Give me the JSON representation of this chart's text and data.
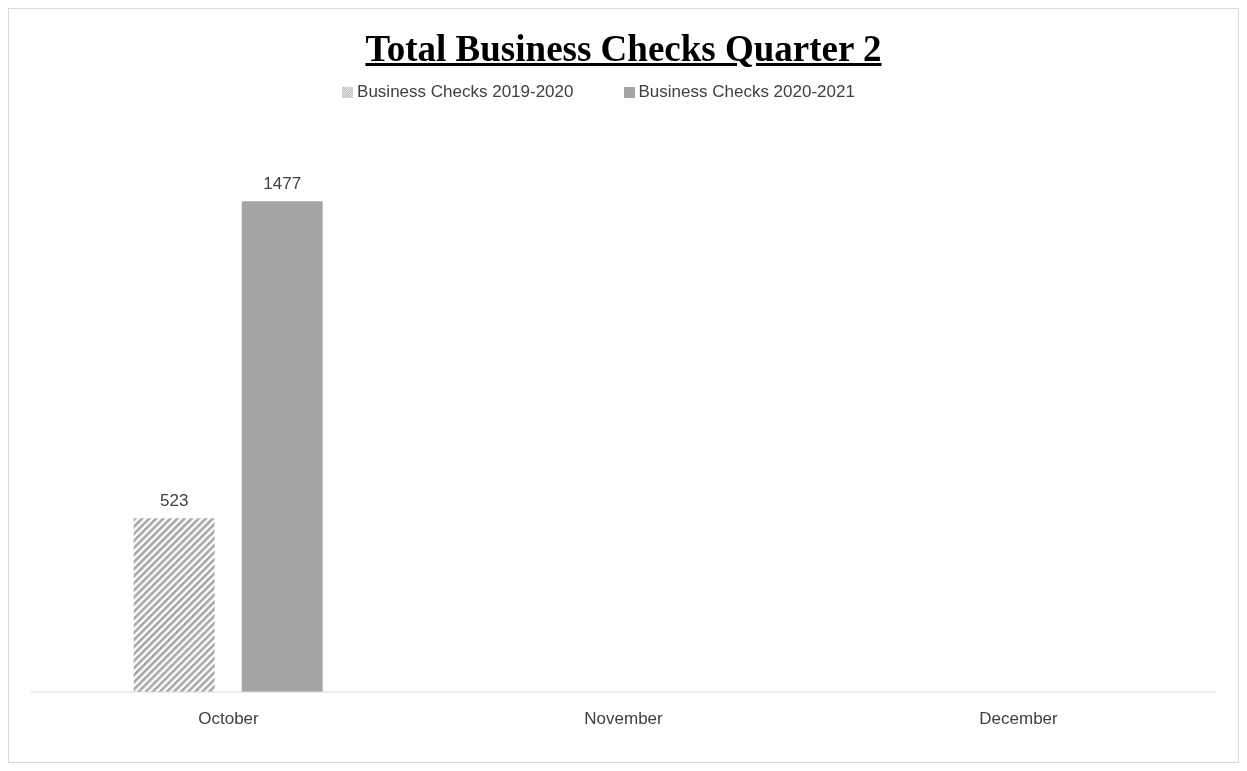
{
  "chart_data": {
    "type": "bar",
    "title": "Total Business Checks Quarter 2",
    "categories": [
      "October",
      "November",
      "December"
    ],
    "series": [
      {
        "name": "Business Checks 2019-2020",
        "color": "#a6a6a6",
        "values": [
          523,
          null,
          null
        ]
      },
      {
        "name": "Business Checks 2020-2021",
        "color": "#a5a5a5",
        "values": [
          1477,
          null,
          null
        ]
      }
    ],
    "data_labels": true,
    "legend": "top",
    "grid": false
  }
}
